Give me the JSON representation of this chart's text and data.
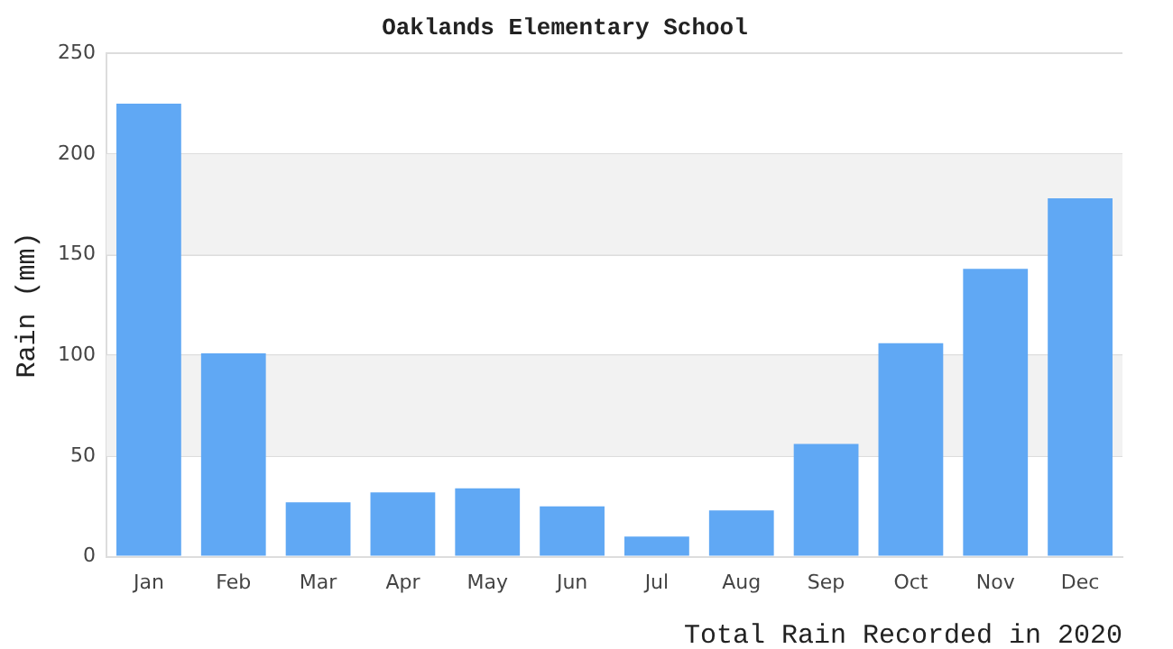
{
  "chart_data": {
    "type": "bar",
    "title": "Oaklands Elementary School",
    "xlabel": "Total Rain Recorded in 2020",
    "ylabel": "Rain (mm)",
    "categories": [
      "Jan",
      "Feb",
      "Mar",
      "Apr",
      "May",
      "Jun",
      "Jul",
      "Aug",
      "Sep",
      "Oct",
      "Nov",
      "Dec"
    ],
    "values": [
      225,
      101,
      27,
      32,
      34,
      25,
      10,
      23,
      56,
      106,
      143,
      178
    ],
    "color": "#60a8f4",
    "ylim": [
      0,
      250
    ],
    "yticks": [
      0,
      50,
      100,
      150,
      200,
      250
    ],
    "grid": "y",
    "legend": false
  }
}
